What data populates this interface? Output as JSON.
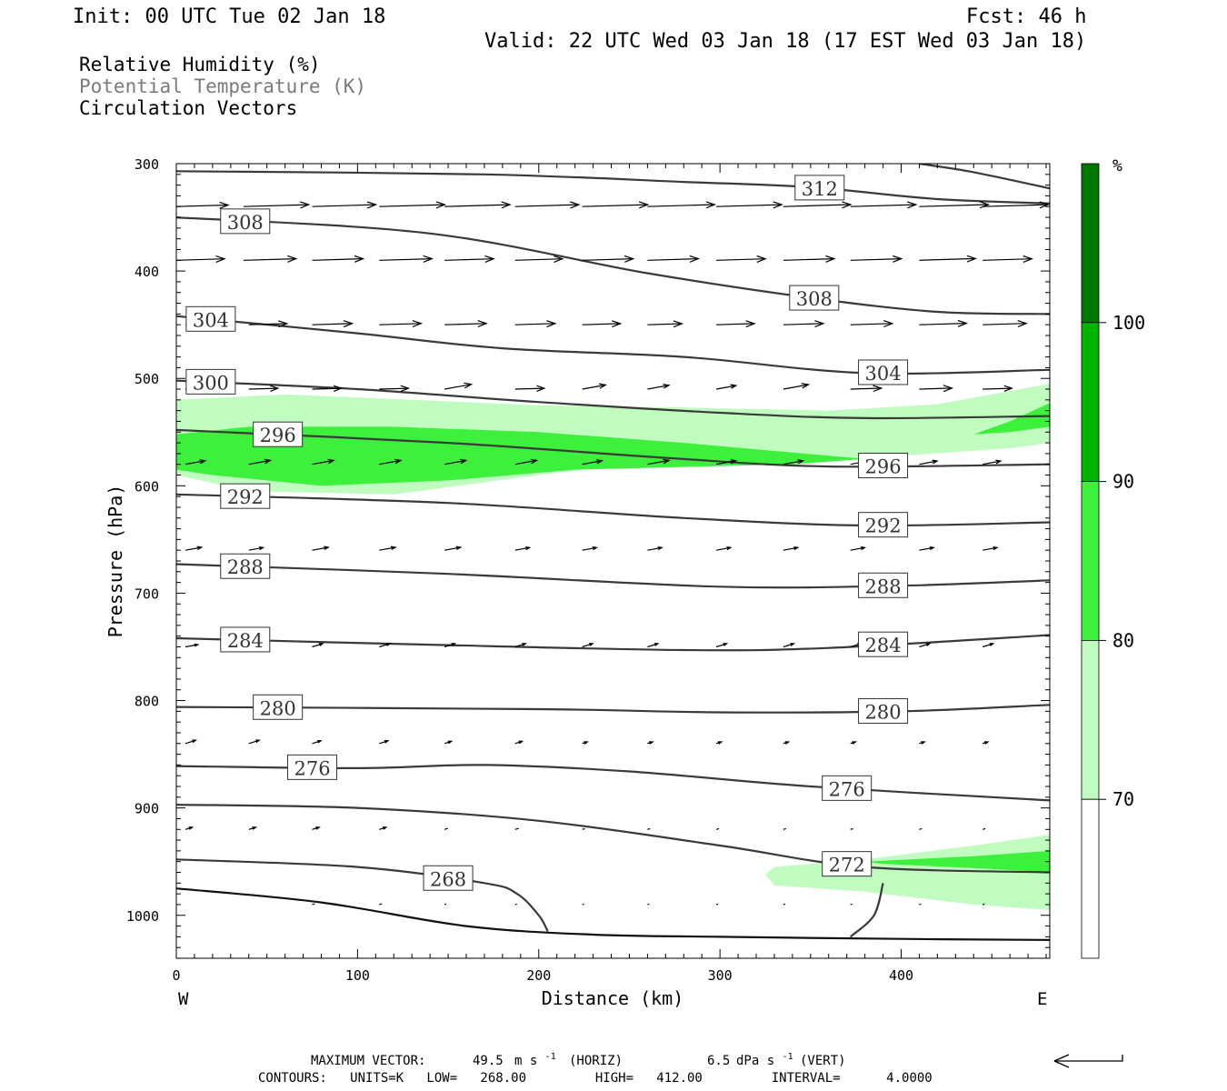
{
  "header": {
    "init": "Init: 00 UTC Tue 02 Jan 18",
    "fcst": "Fcst:   46 h",
    "valid": "Valid: 22 UTC Wed 03 Jan 18 (17 EST Wed 03 Jan 18)"
  },
  "legend": {
    "rh": "Relative Humidity (%)",
    "theta": "Potential Temperature (K)",
    "vectors": "Circulation Vectors"
  },
  "footer": {
    "max_vector_label": "MAXIMUM VECTOR:",
    "horiz_value": "49.5",
    "vert_value": "6.5",
    "m_s": "m s",
    "dpa_s": "dPa s",
    "sup": "-1",
    "horiz": "(HORIZ)",
    "vert": "(VERT)",
    "contours": "CONTOURS:   UNITS=K   LOW=   268.00         HIGH=   412.00         INTERVAL=      4.0000"
  },
  "colors": {
    "contour": "#3a3a3a",
    "rh_70": "#c0fcc0",
    "rh_80": "#3cf03c",
    "rh_90": "#00b400",
    "rh_100": "#007800",
    "grey_text": "#7a7a7a"
  },
  "chart_data": {
    "type": "cross-section",
    "xlabel": "Distance (km)",
    "ylabel": "Pressure (hPa)",
    "xlim": [
      0,
      482
    ],
    "ylim": [
      1040,
      300
    ],
    "x_ticks": [
      "0",
      "100",
      "200",
      "300",
      "400"
    ],
    "y_ticks": [
      "300",
      "400",
      "500",
      "600",
      "700",
      "800",
      "900",
      "1000"
    ],
    "x_end_labels": {
      "left": "W",
      "right": "E"
    },
    "colorbar": {
      "unit": "%",
      "levels": [
        "70",
        "80",
        "90",
        "100"
      ],
      "colors": [
        "#ffffff",
        "#c0fcc0",
        "#3cf03c",
        "#00b400",
        "#007800"
      ]
    },
    "theta_contours": [
      {
        "k": 312,
        "labels": [
          "312"
        ],
        "points": [
          [
            0,
            307
          ],
          [
            170,
            310
          ],
          [
            280,
            317
          ],
          [
            350,
            322
          ],
          [
            420,
            333
          ],
          [
            482,
            337
          ]
        ]
      },
      {
        "k": 316,
        "labels": [],
        "points": [
          [
            410,
            300
          ],
          [
            440,
            308
          ],
          [
            482,
            323
          ]
        ]
      },
      {
        "k": 308,
        "labels": [
          "308",
          "308"
        ],
        "points": [
          [
            0,
            350
          ],
          [
            140,
            365
          ],
          [
            260,
            402
          ],
          [
            350,
            425
          ],
          [
            420,
            438
          ],
          [
            482,
            440
          ]
        ]
      },
      {
        "k": 304,
        "labels": [
          "304",
          "304"
        ],
        "points": [
          [
            0,
            442
          ],
          [
            100,
            458
          ],
          [
            180,
            472
          ],
          [
            280,
            480
          ],
          [
            380,
            495
          ],
          [
            482,
            492
          ]
        ]
      },
      {
        "k": 300,
        "labels": [
          "300"
        ],
        "points": [
          [
            0,
            502
          ],
          [
            100,
            510
          ],
          [
            200,
            522
          ],
          [
            300,
            532
          ],
          [
            380,
            537
          ],
          [
            482,
            535
          ]
        ]
      },
      {
        "k": 296,
        "labels": [
          "296",
          "296"
        ],
        "points": [
          [
            0,
            548
          ],
          [
            150,
            560
          ],
          [
            270,
            574
          ],
          [
            360,
            582
          ],
          [
            482,
            580
          ]
        ]
      },
      {
        "k": 292,
        "labels": [
          "292",
          "292"
        ],
        "points": [
          [
            0,
            608
          ],
          [
            150,
            616
          ],
          [
            280,
            630
          ],
          [
            380,
            637
          ],
          [
            482,
            634
          ]
        ]
      },
      {
        "k": 288,
        "labels": [
          "288",
          "288"
        ],
        "points": [
          [
            0,
            673
          ],
          [
            150,
            682
          ],
          [
            300,
            694
          ],
          [
            400,
            693
          ],
          [
            482,
            688
          ]
        ]
      },
      {
        "k": 284,
        "labels": [
          "284",
          "284"
        ],
        "points": [
          [
            0,
            742
          ],
          [
            140,
            748
          ],
          [
            280,
            753
          ],
          [
            360,
            751
          ],
          [
            482,
            739
          ]
        ]
      },
      {
        "k": 280,
        "labels": [
          "280",
          "280"
        ],
        "points": [
          [
            0,
            806
          ],
          [
            200,
            808
          ],
          [
            300,
            811
          ],
          [
            400,
            810
          ],
          [
            482,
            804
          ]
        ]
      },
      {
        "k": 276,
        "labels": [
          "276",
          "276"
        ],
        "points": [
          [
            0,
            861
          ],
          [
            100,
            863
          ],
          [
            170,
            860
          ],
          [
            250,
            866
          ],
          [
            350,
            880
          ],
          [
            482,
            893
          ]
        ]
      },
      {
        "k": 272,
        "labels": [
          "272"
        ],
        "points": [
          [
            0,
            897
          ],
          [
            100,
            900
          ],
          [
            200,
            912
          ],
          [
            300,
            935
          ],
          [
            380,
            955
          ],
          [
            482,
            960
          ]
        ]
      },
      {
        "k": 268,
        "labels": [
          "268"
        ],
        "points": [
          [
            0,
            948
          ],
          [
            100,
            955
          ],
          [
            170,
            970
          ],
          [
            188,
            980
          ],
          [
            200,
            1000
          ],
          [
            205,
            1015
          ]
        ]
      },
      {
        "k": 270,
        "labels": [],
        "points": [
          [
            372,
            1020
          ],
          [
            385,
            1000
          ],
          [
            390,
            970
          ]
        ]
      }
    ],
    "surface": {
      "points": [
        [
          0,
          975
        ],
        [
          80,
          988
        ],
        [
          160,
          1010
        ],
        [
          230,
          1018
        ],
        [
          300,
          1020
        ],
        [
          400,
          1022
        ],
        [
          482,
          1023
        ]
      ]
    },
    "rh_regions": [
      {
        "level": "70",
        "outline": [
          [
            0,
            520
          ],
          [
            60,
            515
          ],
          [
            130,
            520
          ],
          [
            200,
            525
          ],
          [
            280,
            527
          ],
          [
            360,
            530
          ],
          [
            420,
            524
          ],
          [
            482,
            505
          ],
          [
            482,
            560
          ],
          [
            460,
            565
          ],
          [
            400,
            572
          ],
          [
            330,
            578
          ],
          [
            260,
            578
          ],
          [
            200,
            590
          ],
          [
            120,
            608
          ],
          [
            40,
            605
          ],
          [
            0,
            590
          ]
        ]
      },
      {
        "level": "80",
        "outline": [
          [
            0,
            552
          ],
          [
            40,
            545
          ],
          [
            120,
            545
          ],
          [
            200,
            550
          ],
          [
            280,
            560
          ],
          [
            380,
            575
          ],
          [
            340,
            580
          ],
          [
            220,
            585
          ],
          [
            150,
            595
          ],
          [
            80,
            600
          ],
          [
            20,
            590
          ],
          [
            0,
            585
          ]
        ]
      },
      {
        "level": "80",
        "outline": [
          [
            440,
            552
          ],
          [
            460,
            540
          ],
          [
            482,
            523
          ],
          [
            482,
            545
          ],
          [
            460,
            550
          ]
        ]
      },
      {
        "level": "70",
        "outline": [
          [
            330,
            955
          ],
          [
            380,
            948
          ],
          [
            440,
            935
          ],
          [
            482,
            925
          ],
          [
            482,
            995
          ],
          [
            440,
            990
          ],
          [
            380,
            978
          ],
          [
            330,
            972
          ],
          [
            325,
            962
          ]
        ]
      },
      {
        "level": "80",
        "outline": [
          [
            380,
            950
          ],
          [
            440,
            945
          ],
          [
            482,
            940
          ],
          [
            482,
            960
          ],
          [
            440,
            956
          ],
          [
            390,
            952
          ]
        ]
      }
    ],
    "vectors": [
      {
        "pressure": 340,
        "items": [
          [
            0,
            57
          ],
          [
            37,
            72
          ],
          [
            75,
            70
          ],
          [
            112,
            72
          ],
          [
            148,
            72
          ],
          [
            187,
            70
          ],
          [
            224,
            72
          ],
          [
            260,
            74
          ],
          [
            298,
            72
          ],
          [
            335,
            74
          ],
          [
            372,
            72
          ],
          [
            410,
            76
          ],
          [
            445,
            72
          ]
        ]
      },
      {
        "pressure": 390,
        "items": [
          [
            0,
            53
          ],
          [
            37,
            58
          ],
          [
            75,
            56
          ],
          [
            112,
            58
          ],
          [
            148,
            54
          ],
          [
            187,
            52
          ],
          [
            224,
            56
          ],
          [
            260,
            56
          ],
          [
            298,
            54
          ],
          [
            335,
            56
          ],
          [
            372,
            56
          ],
          [
            410,
            62
          ],
          [
            445,
            54
          ]
        ]
      },
      {
        "pressure": 450,
        "items": [
          [
            5,
            50
          ],
          [
            40,
            42
          ],
          [
            75,
            44
          ],
          [
            112,
            46
          ],
          [
            148,
            46
          ],
          [
            187,
            44
          ],
          [
            224,
            42
          ],
          [
            260,
            38
          ],
          [
            298,
            42
          ],
          [
            335,
            44
          ],
          [
            372,
            46
          ],
          [
            410,
            52
          ],
          [
            445,
            48
          ]
        ]
      },
      {
        "pressure": 510,
        "items": [
          [
            5,
            40
          ],
          [
            40,
            32
          ],
          [
            75,
            32
          ],
          [
            112,
            32
          ],
          [
            148,
            30
          ],
          [
            187,
            32
          ],
          [
            224,
            26
          ],
          [
            260,
            24
          ],
          [
            298,
            22
          ],
          [
            335,
            28
          ],
          [
            372,
            34
          ],
          [
            410,
            36
          ],
          [
            445,
            32
          ]
        ]
      },
      {
        "pressure": 580,
        "items": [
          [
            5,
            22
          ],
          [
            40,
            24
          ],
          [
            75,
            24
          ],
          [
            112,
            24
          ],
          [
            148,
            24
          ],
          [
            187,
            24
          ],
          [
            224,
            22
          ],
          [
            260,
            24
          ],
          [
            298,
            22
          ],
          [
            335,
            22
          ],
          [
            372,
            20
          ],
          [
            410,
            20
          ],
          [
            445,
            20
          ]
        ]
      },
      {
        "pressure": 660,
        "items": [
          [
            5,
            18
          ],
          [
            40,
            16
          ],
          [
            75,
            18
          ],
          [
            112,
            18
          ],
          [
            148,
            18
          ],
          [
            187,
            16
          ],
          [
            224,
            16
          ],
          [
            260,
            16
          ],
          [
            298,
            16
          ],
          [
            335,
            16
          ],
          [
            372,
            16
          ],
          [
            410,
            16
          ],
          [
            445,
            16
          ]
        ]
      },
      {
        "pressure": 750,
        "items": [
          [
            5,
            14
          ],
          [
            40,
            14
          ],
          [
            75,
            12
          ],
          [
            112,
            12
          ],
          [
            148,
            12
          ],
          [
            187,
            12
          ],
          [
            224,
            12
          ],
          [
            260,
            12
          ],
          [
            298,
            12
          ],
          [
            335,
            12
          ],
          [
            372,
            12
          ],
          [
            410,
            12
          ],
          [
            445,
            12
          ]
        ]
      },
      {
        "pressure": 840,
        "items": [
          [
            5,
            12
          ],
          [
            40,
            12
          ],
          [
            75,
            10
          ],
          [
            112,
            10
          ],
          [
            148,
            8
          ],
          [
            187,
            8
          ],
          [
            224,
            6
          ],
          [
            260,
            6
          ],
          [
            298,
            6
          ],
          [
            335,
            6
          ],
          [
            372,
            6
          ],
          [
            410,
            6
          ],
          [
            445,
            6
          ]
        ]
      },
      {
        "pressure": 920,
        "items": [
          [
            5,
            8
          ],
          [
            40,
            8
          ],
          [
            75,
            8
          ],
          [
            112,
            8
          ],
          [
            148,
            4
          ],
          [
            187,
            4
          ],
          [
            224,
            3
          ],
          [
            260,
            3
          ],
          [
            298,
            3
          ],
          [
            335,
            3
          ],
          [
            372,
            3
          ],
          [
            410,
            3
          ],
          [
            445,
            3
          ]
        ]
      },
      {
        "pressure": 990,
        "items": [
          [
            75,
            3
          ],
          [
            112,
            3
          ],
          [
            148,
            2
          ],
          [
            187,
            2
          ],
          [
            224,
            2
          ],
          [
            260,
            2
          ],
          [
            298,
            2
          ],
          [
            335,
            2
          ],
          [
            372,
            2
          ],
          [
            410,
            2
          ],
          [
            445,
            2
          ]
        ]
      }
    ]
  }
}
